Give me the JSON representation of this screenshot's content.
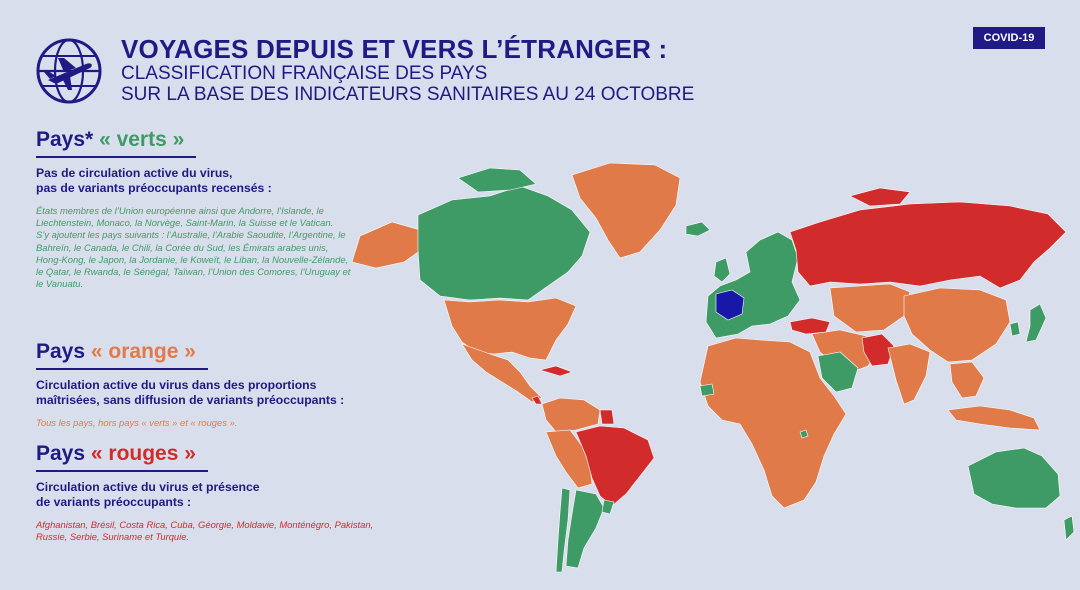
{
  "header": {
    "title": "VOYAGES DEPUIS ET VERS L’ÉTRANGER :",
    "subtitle_line1": "CLASSIFICATION FRANÇAISE DES PAYS",
    "subtitle_line2": "SUR LA BASE DES INDICATEURS SANITAIRES AU 24 OCTOBRE",
    "badge": "COVID-19",
    "logo_icon": "airplane-globe-icon"
  },
  "colors": {
    "background": "#d9deec",
    "navy": "#1f1a84",
    "green": "#3f9b66",
    "orange": "#e07a48",
    "red": "#d22b2b",
    "france": "#1717a8"
  },
  "legend": {
    "green": {
      "prefix": "Pays* ",
      "keyword": "« verts »",
      "desc_line1": "Pas de circulation active du virus,",
      "desc_line2": "pas de variants préoccupants recensés :",
      "list_para1": "États membres de l’Union européenne ainsi que Andorre, l’Islande, le Liechtenstein, Monaco, la Norvège, Saint-Marin, la Suisse et le Vatican.",
      "list_para2": "S’y ajoutent les pays suivants : l’Australie, l’Arabie Saoudite, l’Argentine, le Bahreïn, le Canada, le Chili, la Corée du Sud, les Émirats arabes unis, Hong-Kong, le Japon, la Jordanie, le Koweït, le Liban, la Nouvelle-Zélande, le Qatar, le Rwanda, le Sénégal, Taïwan, l’Union des Comores, l’Uruguay et le Vanuatu."
    },
    "orange": {
      "prefix": "Pays ",
      "keyword": "« orange »",
      "desc_line1": "Circulation active du virus dans des proportions",
      "desc_line2": "maîtrisées, sans diffusion de variants préoccupants :",
      "list": "Tous les pays, hors pays « verts » et « rouges »."
    },
    "red": {
      "prefix": "Pays ",
      "keyword": "« rouges »",
      "desc_line1": "Circulation active du virus et présence",
      "desc_line2": "de variants préoccupants :",
      "list": "Afghanistan, Brésil, Costa Rica, Cuba, Géorgie, Moldavie, Monténégro, Pakistan, Russie, Serbie, Suriname et Turquie."
    }
  },
  "map": {
    "regions": [
      {
        "name": "canada",
        "status": "green"
      },
      {
        "name": "alaska",
        "status": "orange"
      },
      {
        "name": "greenland",
        "status": "orange"
      },
      {
        "name": "usa",
        "status": "orange"
      },
      {
        "name": "mexico-central-america",
        "status": "orange"
      },
      {
        "name": "cuba",
        "status": "red"
      },
      {
        "name": "costa-rica",
        "status": "red"
      },
      {
        "name": "colombia-venezuela",
        "status": "orange"
      },
      {
        "name": "peru-bolivia",
        "status": "orange"
      },
      {
        "name": "brazil",
        "status": "red"
      },
      {
        "name": "suriname",
        "status": "red"
      },
      {
        "name": "chile",
        "status": "green"
      },
      {
        "name": "argentina",
        "status": "green"
      },
      {
        "name": "uruguay",
        "status": "green"
      },
      {
        "name": "iceland",
        "status": "green"
      },
      {
        "name": "europe",
        "status": "green"
      },
      {
        "name": "france",
        "status": "france"
      },
      {
        "name": "russia",
        "status": "red"
      },
      {
        "name": "turkey",
        "status": "red"
      },
      {
        "name": "africa",
        "status": "orange"
      },
      {
        "name": "senegal",
        "status": "green"
      },
      {
        "name": "rwanda",
        "status": "green"
      },
      {
        "name": "saudi-arabia",
        "status": "green"
      },
      {
        "name": "middle-east",
        "status": "orange"
      },
      {
        "name": "afghanistan-pakistan",
        "status": "red"
      },
      {
        "name": "central-asia",
        "status": "orange"
      },
      {
        "name": "india",
        "status": "orange"
      },
      {
        "name": "china",
        "status": "orange"
      },
      {
        "name": "japan",
        "status": "green"
      },
      {
        "name": "south-korea",
        "status": "green"
      },
      {
        "name": "southeast-asia",
        "status": "orange"
      },
      {
        "name": "indonesia",
        "status": "orange"
      },
      {
        "name": "australia",
        "status": "green"
      },
      {
        "name": "new-zealand",
        "status": "green"
      }
    ]
  }
}
